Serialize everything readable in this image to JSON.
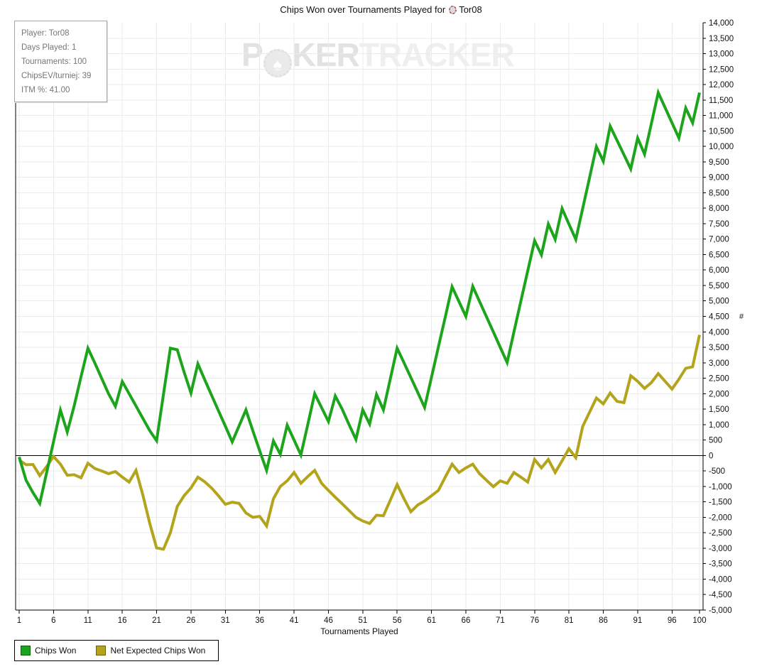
{
  "title": {
    "prefix": "Chips Won over Tournaments Played for",
    "player": "Tor08",
    "player_icon": "poker-chip-icon"
  },
  "info_box": {
    "lines": [
      "Player: Tor08",
      "Days Played: 1",
      "Tournaments: 100",
      "ChipsEV/turniej: 39",
      "ITM %: 41.00"
    ]
  },
  "watermark": {
    "part1": "P",
    "chip_icon": "poker-chip-spade-icon",
    "chip_glyph": "♠",
    "part2": "KER",
    "part3": "TRACKER"
  },
  "legend": {
    "items": [
      {
        "label": "Chips Won",
        "color": "#1ca41c",
        "border": "#006600"
      },
      {
        "label": "Net Expected Chips Won",
        "color": "#b3a41b",
        "border": "#6e6400"
      }
    ]
  },
  "chart_data": {
    "type": "line",
    "title": "Chips Won over Tournaments Played for Tor08",
    "xlabel": "Tournaments Played",
    "ylabel": "#",
    "x_range": [
      1,
      100
    ],
    "ylim": [
      -5000,
      14000
    ],
    "y_tick_step": 500,
    "x_ticks": [
      1,
      6,
      11,
      16,
      21,
      26,
      31,
      36,
      41,
      46,
      51,
      56,
      61,
      66,
      71,
      76,
      81,
      86,
      91,
      96,
      100
    ],
    "grid": true,
    "zero_line": true,
    "legend_position": "bottom-left",
    "axis_color": "#000000",
    "grid_color": "#ebebeb",
    "series": [
      {
        "name": "Chips Won",
        "color": "#1ca41c",
        "values": [
          -50,
          -800,
          -1200,
          -1550,
          -550,
          450,
          1470,
          760,
          1600,
          2550,
          3470,
          3000,
          2500,
          2000,
          1590,
          2390,
          2000,
          1600,
          1200,
          800,
          480,
          1980,
          3470,
          3420,
          2700,
          2020,
          2965,
          2450,
          1950,
          1450,
          950,
          440,
          960,
          1475,
          800,
          150,
          -480,
          470,
          40,
          980,
          500,
          20,
          1000,
          2000,
          1550,
          1100,
          1925,
          1500,
          1000,
          520,
          1475,
          1020,
          1975,
          1475,
          2470,
          3470,
          3000,
          2520,
          2040,
          1555,
          2530,
          3510,
          4480,
          5460,
          4980,
          4500,
          5470,
          4980,
          4490,
          4000,
          3500,
          3010,
          4000,
          4990,
          5970,
          6950,
          6490,
          7490,
          6990,
          7990,
          7490,
          6990,
          7990,
          8990,
          9990,
          9520,
          10650,
          10190,
          9730,
          9270,
          10270,
          9750,
          10745,
          11740,
          11250,
          10760,
          10270,
          11240,
          10760,
          11740
        ]
      },
      {
        "name": "Net Expected Chips Won",
        "color": "#b3a41b",
        "values": [
          -150,
          -300,
          -290,
          -650,
          -360,
          -30,
          -280,
          -640,
          -620,
          -720,
          -250,
          -420,
          -500,
          -590,
          -520,
          -700,
          -860,
          -480,
          -1280,
          -2200,
          -2990,
          -3030,
          -2500,
          -1650,
          -1300,
          -1050,
          -700,
          -850,
          -1050,
          -1300,
          -1580,
          -1510,
          -1550,
          -1860,
          -2000,
          -1970,
          -2280,
          -1400,
          -1000,
          -820,
          -550,
          -900,
          -680,
          -480,
          -900,
          -1130,
          -1350,
          -1560,
          -1780,
          -2000,
          -2120,
          -2200,
          -1930,
          -1950,
          -1450,
          -940,
          -1400,
          -1820,
          -1600,
          -1470,
          -1300,
          -1130,
          -700,
          -280,
          -550,
          -400,
          -280,
          -590,
          -800,
          -1010,
          -820,
          -900,
          -550,
          -700,
          -860,
          -130,
          -400,
          -130,
          -550,
          -170,
          220,
          -70,
          940,
          1400,
          1860,
          1670,
          2020,
          1750,
          1710,
          2580,
          2400,
          2170,
          2360,
          2650,
          2400,
          2150,
          2470,
          2820,
          2870,
          3900
        ]
      }
    ]
  }
}
